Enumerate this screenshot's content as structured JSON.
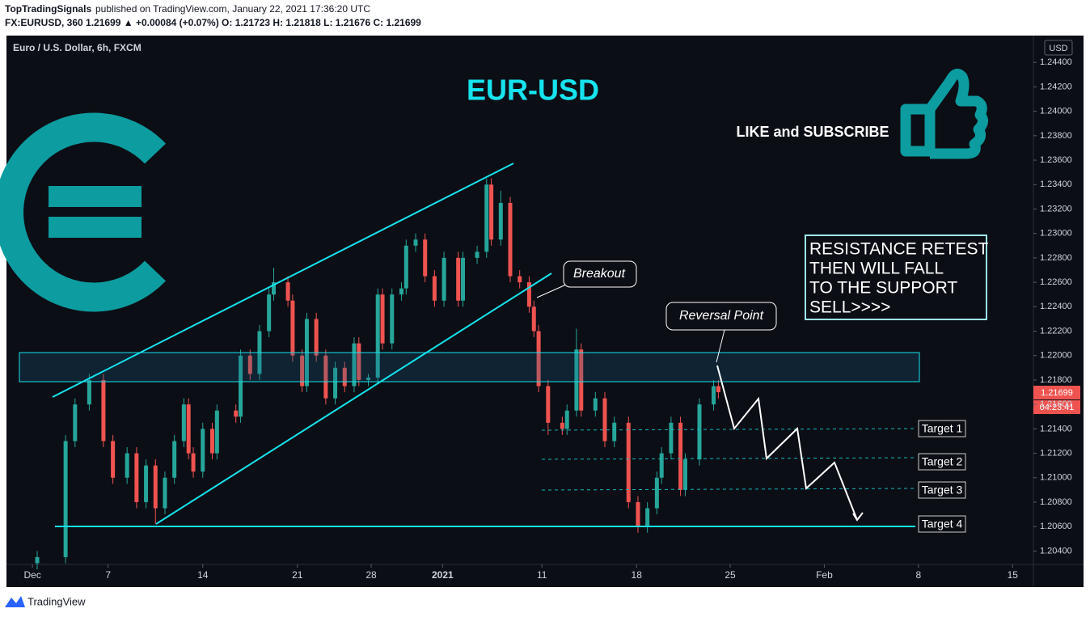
{
  "header": {
    "author": "TopTradingSignals",
    "published": "published on TradingView.com, January 22, 2021 17:36:20 UTC",
    "symbol_line": "FX:EURUSD, 360  1.21699 ▲ +0.00084 (+0.07%)  O: 1.21723  H: 1.21818  L: 1.21676  C: 1.21699"
  },
  "footer": {
    "brand": "TradingView"
  },
  "chart_data": {
    "type": "candlestick",
    "title": "EUR-USD",
    "subtitle": "Euro / U.S. Dollar, 6h, FXCM",
    "currency": "USD",
    "annotations": {
      "like": "LIKE and SUBSCRIBE",
      "breakout": "Breakout",
      "reversal": "Reversal Point",
      "note": [
        "RESISTANCE RETEST",
        "THEN WILL FALL",
        "TO THE SUPPORT",
        "SELL>>>>"
      ],
      "targets": [
        "Target 1",
        "Target 2",
        "Target 3",
        "Target 4"
      ]
    },
    "last_price_label": "1.21699",
    "countdown": "04:23:41",
    "up_color": "#26a69a",
    "down_color": "#ef5350",
    "grid": false,
    "x": [
      1,
      7,
      9,
      12,
      15,
      17,
      20,
      22,
      24,
      26,
      28,
      30,
      32,
      33,
      34,
      36,
      38,
      39,
      43,
      44,
      46,
      48,
      50,
      51,
      54,
      55,
      57,
      58,
      60,
      62,
      64,
      66,
      68,
      69,
      71,
      73,
      74,
      76,
      78,
      79,
      81,
      83,
      85,
      87,
      90,
      91,
      94,
      96,
      97,
      99,
      101,
      103,
      105,
      106,
      107,
      109,
      112,
      113,
      115,
      116,
      119,
      121,
      123,
      126,
      128,
      130,
      132,
      133,
      135,
      137,
      138,
      141,
      144,
      145
    ],
    "open": [
      1.203,
      1.2035,
      1.213,
      1.216,
      1.218,
      1.213,
      1.21,
      1.212,
      1.208,
      1.211,
      1.2075,
      1.21,
      1.213,
      1.216,
      1.212,
      1.2105,
      1.214,
      1.212,
      1.2155,
      1.215,
      1.22,
      1.2185,
      1.222,
      1.225,
      1.226,
      1.2245,
      1.22,
      1.2175,
      1.223,
      1.22,
      1.2165,
      1.219,
      1.2175,
      1.221,
      1.218,
      1.2182,
      1.225,
      1.221,
      1.225,
      1.2255,
      1.229,
      1.2295,
      1.2265,
      1.2245,
      1.228,
      1.2245,
      1.228,
      1.2285,
      1.234,
      1.2295,
      1.2325,
      1.2265,
      1.226,
      1.224,
      1.222,
      1.2175,
      1.2145,
      1.214,
      1.2155,
      1.2205,
      1.2155,
      1.2165,
      1.213,
      1.2145,
      1.208,
      1.206,
      1.2075,
      1.21,
      1.212,
      1.2145,
      1.209,
      1.2115,
      1.216,
      1.2175
    ],
    "high": [
      1.204,
      1.2135,
      1.2165,
      1.2185,
      1.2185,
      1.2135,
      1.2125,
      1.2125,
      1.2115,
      1.2115,
      1.2105,
      1.2135,
      1.2165,
      1.2165,
      1.2125,
      1.2145,
      1.2145,
      1.216,
      1.216,
      1.2205,
      1.2205,
      1.2225,
      1.2255,
      1.2272,
      1.2265,
      1.225,
      1.2205,
      1.2235,
      1.2235,
      1.2205,
      1.2195,
      1.2195,
      1.2215,
      1.2215,
      1.2185,
      1.2255,
      1.2255,
      1.2255,
      1.226,
      1.2295,
      1.23,
      1.23,
      1.227,
      1.2285,
      1.2285,
      1.2285,
      1.229,
      1.2345,
      1.2345,
      1.2335,
      1.233,
      1.227,
      1.2265,
      1.2245,
      1.2225,
      1.218,
      1.215,
      1.216,
      1.2222,
      1.221,
      1.217,
      1.217,
      1.215,
      1.215,
      1.2085,
      1.208,
      1.2105,
      1.2125,
      1.215,
      1.215,
      1.212,
      1.2165,
      1.218,
      1.218
    ],
    "low": [
      1.2025,
      1.203,
      1.2125,
      1.2155,
      1.2125,
      1.2095,
      1.2095,
      1.2075,
      1.2075,
      1.2062,
      1.207,
      1.2095,
      1.2125,
      1.2115,
      1.21,
      1.21,
      1.2115,
      1.2115,
      1.2145,
      1.2145,
      1.218,
      1.218,
      1.2215,
      1.2245,
      1.224,
      1.2195,
      1.217,
      1.217,
      1.2195,
      1.216,
      1.216,
      1.217,
      1.217,
      1.2175,
      1.2175,
      1.2177,
      1.2205,
      1.2205,
      1.2245,
      1.225,
      1.2285,
      1.226,
      1.224,
      1.224,
      1.224,
      1.224,
      1.2275,
      1.228,
      1.229,
      1.229,
      1.226,
      1.2255,
      1.2235,
      1.2215,
      1.217,
      1.2135,
      1.2135,
      1.2135,
      1.215,
      1.215,
      1.215,
      1.2125,
      1.2125,
      1.2075,
      1.2055,
      1.2055,
      1.207,
      1.2095,
      1.2115,
      1.2085,
      1.2085,
      1.211,
      1.2155,
      1.2165
    ],
    "close": [
      1.2035,
      1.213,
      1.216,
      1.218,
      1.213,
      1.21,
      1.212,
      1.208,
      1.211,
      1.2075,
      1.21,
      1.213,
      1.216,
      1.212,
      1.2105,
      1.214,
      1.212,
      1.2155,
      1.215,
      1.22,
      1.2185,
      1.222,
      1.225,
      1.226,
      1.2245,
      1.22,
      1.2175,
      1.223,
      1.22,
      1.2165,
      1.219,
      1.2175,
      1.221,
      1.218,
      1.2182,
      1.225,
      1.221,
      1.225,
      1.2255,
      1.229,
      1.2295,
      1.2265,
      1.2245,
      1.228,
      1.2245,
      1.228,
      1.2285,
      1.234,
      1.2295,
      1.2325,
      1.2265,
      1.226,
      1.224,
      1.222,
      1.2175,
      1.2145,
      1.214,
      1.2155,
      1.2205,
      1.2155,
      1.2165,
      1.213,
      1.2145,
      1.208,
      1.206,
      1.2075,
      1.21,
      1.212,
      1.2145,
      1.209,
      1.2115,
      1.216,
      1.2175,
      1.217
    ],
    "xlim": [
      -5.5,
      211.6
    ],
    "xticks": [
      {
        "value": 0,
        "label": "Dec"
      },
      {
        "value": 16,
        "label": "7"
      },
      {
        "value": 36,
        "label": "14"
      },
      {
        "value": 56,
        "label": "21"
      },
      {
        "value": 71.6,
        "label": "28"
      },
      {
        "value": 86.7,
        "label": "2021"
      },
      {
        "value": 107.7,
        "label": "11"
      },
      {
        "value": 127.7,
        "label": "18"
      },
      {
        "value": 147.5,
        "label": "25"
      },
      {
        "value": 167.4,
        "label": "Feb"
      },
      {
        "value": 187.3,
        "label": "8"
      },
      {
        "value": 207.2,
        "label": "15"
      }
    ],
    "ylim": [
      1.2029,
      1.2462
    ],
    "yticks": [
      {
        "value": 1.204,
        "label": "1.20400"
      },
      {
        "value": 1.206,
        "label": "1.20600"
      },
      {
        "value": 1.208,
        "label": "1.20800"
      },
      {
        "value": 1.21,
        "label": "1.21000"
      },
      {
        "value": 1.212,
        "label": "1.21200"
      },
      {
        "value": 1.214,
        "label": "1.21400"
      },
      {
        "value": 1.216,
        "label": "1.21600"
      },
      {
        "value": 1.218,
        "label": "1.21800"
      },
      {
        "value": 1.22,
        "label": "1.22000"
      },
      {
        "value": 1.222,
        "label": "1.22200"
      },
      {
        "value": 1.224,
        "label": "1.22400"
      },
      {
        "value": 1.226,
        "label": "1.22600"
      },
      {
        "value": 1.228,
        "label": "1.22800"
      },
      {
        "value": 1.23,
        "label": "1.23000"
      },
      {
        "value": 1.232,
        "label": "1.23200"
      },
      {
        "value": 1.234,
        "label": "1.23400"
      },
      {
        "value": 1.236,
        "label": "1.23600"
      },
      {
        "value": 1.238,
        "label": "1.23800"
      },
      {
        "value": 1.24,
        "label": "1.24000"
      },
      {
        "value": 1.242,
        "label": "1.24200"
      },
      {
        "value": 1.244,
        "label": "1.24400"
      }
    ]
  }
}
